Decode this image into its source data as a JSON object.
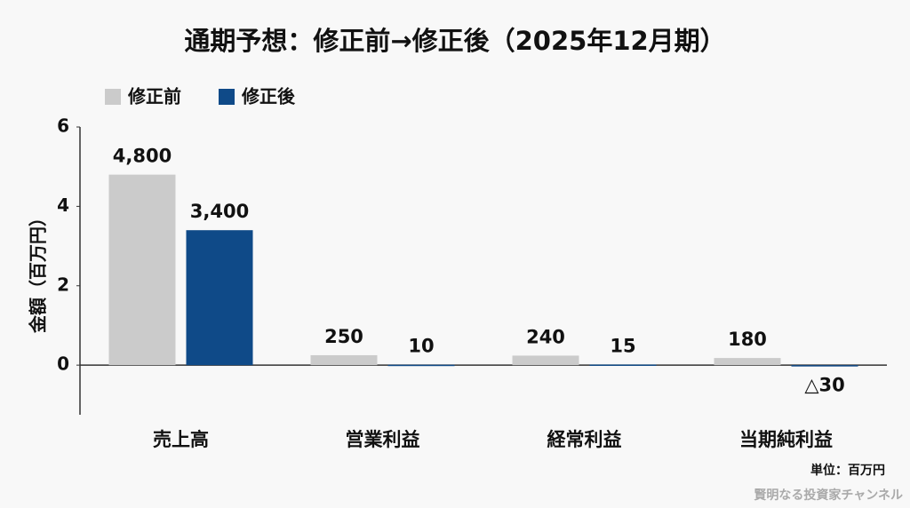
{
  "chart_data": {
    "type": "bar",
    "title": "通期予想：修正前→修正後（2025年12月期）",
    "y_label": "金額（百万円）",
    "categories": [
      "売上高",
      "営業利益",
      "経常利益",
      "当期純利益"
    ],
    "series": [
      {
        "name": "修正前",
        "color": "#cbcbcb",
        "values": [
          4.8,
          0.25,
          0.24,
          0.18
        ],
        "value_labels": [
          "4,800",
          "250",
          "240",
          "180"
        ]
      },
      {
        "name": "修正後",
        "color": "#0f4a88",
        "values": [
          3.4,
          0.01,
          0.015,
          -0.03
        ],
        "value_labels": [
          "3,400",
          "10",
          "15",
          "△30"
        ]
      }
    ],
    "ylim": [
      -1.25,
      6
    ],
    "yticks": [
      0,
      2,
      4,
      6
    ],
    "grid": false,
    "legend": "top-left",
    "unit_note": "単位：百万円",
    "watermark": "賢明なる投資家チャンネル"
  }
}
